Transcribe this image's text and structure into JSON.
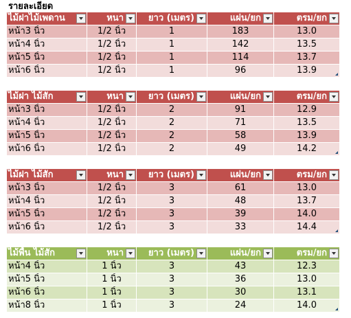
{
  "title": "รายละเอียด",
  "tables": [
    {
      "headers": [
        "ไม้ฝาไม้เพดาน",
        "หนา",
        "ยาว (เมตร)",
        "แผ่น/ยก",
        "ตรม/ยก"
      ],
      "rows": [
        [
          "หน้า3 นิ้ว",
          "1/2 นิ้ว",
          "1",
          "183",
          "13.0"
        ],
        [
          "หน้า4 นิ้ว",
          "1/2 นิ้ว",
          "1",
          "142",
          "13.5"
        ],
        [
          "หน้า5 นิ้ว",
          "1/2 นิ้ว",
          "1",
          "114",
          "13.7"
        ],
        [
          "หน้า6 นิ้ว",
          "1/2 นิ้ว",
          "1",
          "96",
          "13.9"
        ]
      ]
    },
    {
      "headers": [
        "ไม้ฝา ไม้สัก",
        "หนา",
        "ยาว (เมตร)",
        "แผ่น/ยก",
        "ตรม/ยก"
      ],
      "rows": [
        [
          "หน้า3 นิ้ว",
          "1/2 นิ้ว",
          "2",
          "91",
          "12.9"
        ],
        [
          "หน้า4 นิ้ว",
          "1/2 นิ้ว",
          "2",
          "71",
          "13.5"
        ],
        [
          "หน้า5 นิ้ว",
          "1/2 นิ้ว",
          "2",
          "58",
          "13.9"
        ],
        [
          "หน้า6 นิ้ว",
          "1/2 นิ้ว",
          "2",
          "49",
          "14.2"
        ]
      ]
    },
    {
      "headers": [
        "ไม้ฝา ไม้สัก",
        "หนา",
        "ยาว (เมตร)",
        "แผ่น/ยก",
        "ตรม/ยก"
      ],
      "rows": [
        [
          "หน้า3 นิ้ว",
          "1/2 นิ้ว",
          "3",
          "61",
          "13.0"
        ],
        [
          "หน้า4 นิ้ว",
          "1/2 นิ้ว",
          "3",
          "48",
          "13.7"
        ],
        [
          "หน้า5 นิ้ว",
          "1/2 นิ้ว",
          "3",
          "39",
          "14.0"
        ],
        [
          "หน้า6 นิ้ว",
          "1/2 นิ้ว",
          "3",
          "33",
          "14.4"
        ]
      ]
    },
    {
      "headers": [
        "ไม้พื้น ไม้สัก",
        "หนา",
        "ยาว (เมตร)",
        "แผ่น/ยก",
        "ตรม/ยก"
      ],
      "rows": [
        [
          "หน้า4 นิ้ว",
          "1 นิ้ว",
          "3",
          "43",
          "12.3"
        ],
        [
          "หน้า5 นิ้ว",
          "1 นิ้ว",
          "3",
          "36",
          "13.0"
        ],
        [
          "หน้า6 นิ้ว",
          "1 นิ้ว",
          "3",
          "30",
          "13.1"
        ],
        [
          "หน้า8 นิ้ว",
          "1 นิ้ว",
          "3",
          "24",
          "14.0"
        ]
      ]
    }
  ],
  "theme": {
    "red_header": "#c0504d",
    "red_band_dark": "#e6b8b7",
    "red_band_light": "#f2dcdb",
    "green_header": "#9bbb59",
    "green_band_dark": "#d7e4bc",
    "green_band_light": "#ebf1de",
    "filter_icon": "chevron-down-icon"
  }
}
